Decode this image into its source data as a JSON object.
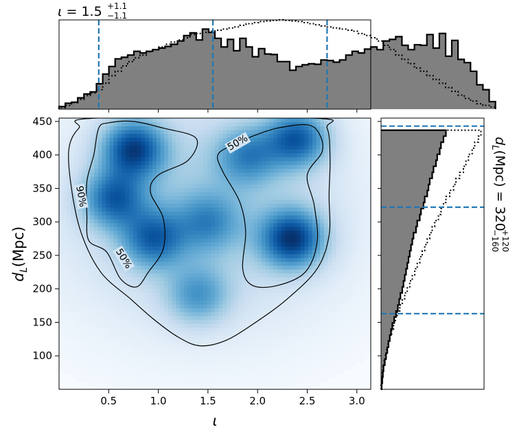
{
  "chart_data": [
    {
      "type": "heatmap",
      "panel": "joint",
      "xlabel": "ι",
      "ylabel_main": "d",
      "ylabel_sub": "L",
      "ylabel_unit": "(Mpc)",
      "xlim": [
        0.0,
        3.14
      ],
      "ylim": [
        50,
        455
      ],
      "x_ticks": [
        0.5,
        1.0,
        1.5,
        2.0,
        2.5,
        3.0
      ],
      "x_tick_labels": [
        "0.5",
        "1.0",
        "1.5",
        "2.0",
        "2.5",
        "3.0"
      ],
      "y_ticks": [
        100,
        150,
        200,
        250,
        300,
        350,
        400,
        450
      ],
      "y_tick_labels": [
        "100",
        "150",
        "200",
        "250",
        "300",
        "350",
        "400",
        "450"
      ],
      "colormap": "Blues",
      "density_peaks": [
        {
          "x": 0.75,
          "y": 410,
          "strength": 0.95
        },
        {
          "x": 0.55,
          "y": 335,
          "strength": 0.75
        },
        {
          "x": 0.95,
          "y": 275,
          "strength": 0.7
        },
        {
          "x": 2.4,
          "y": 425,
          "strength": 0.85
        },
        {
          "x": 2.35,
          "y": 275,
          "strength": 1.0
        },
        {
          "x": 1.9,
          "y": 400,
          "strength": 0.55
        },
        {
          "x": 1.5,
          "y": 300,
          "strength": 0.45
        },
        {
          "x": 1.4,
          "y": 190,
          "strength": 0.5
        }
      ],
      "contours": [
        {
          "label": "90%",
          "label_pos": {
            "x": 0.22,
            "y": 338
          },
          "points": [
            [
              0.38,
              455
            ],
            [
              2.55,
              455
            ],
            [
              2.7,
              440
            ],
            [
              2.73,
              395
            ],
            [
              2.72,
              340
            ],
            [
              2.72,
              280
            ],
            [
              2.6,
              230
            ],
            [
              2.3,
              185
            ],
            [
              1.98,
              150
            ],
            [
              1.68,
              123
            ],
            [
              1.42,
              115
            ],
            [
              1.2,
              128
            ],
            [
              0.95,
              155
            ],
            [
              0.72,
              185
            ],
            [
              0.42,
              225
            ],
            [
              0.22,
              285
            ],
            [
              0.12,
              355
            ],
            [
              0.1,
              410
            ],
            [
              0.2,
              440
            ],
            [
              0.38,
              455
            ]
          ]
        },
        {
          "label": "50%",
          "label_pos": {
            "x": 0.65,
            "y": 245
          },
          "points": [
            [
              0.4,
              440
            ],
            [
              0.5,
              448
            ],
            [
              0.75,
              450
            ],
            [
              1.05,
              440
            ],
            [
              1.38,
              425
            ],
            [
              1.3,
              392
            ],
            [
              1.0,
              370
            ],
            [
              0.92,
              345
            ],
            [
              1.05,
              305
            ],
            [
              1.05,
              260
            ],
            [
              0.9,
              225
            ],
            [
              0.78,
              203
            ],
            [
              0.62,
              215
            ],
            [
              0.48,
              255
            ],
            [
              0.3,
              272
            ],
            [
              0.28,
              310
            ],
            [
              0.28,
              360
            ],
            [
              0.35,
              400
            ],
            [
              0.4,
              440
            ]
          ]
        },
        {
          "label": "50%",
          "label_pos": {
            "x": 1.8,
            "y": 418
          },
          "points": [
            [
              1.6,
              400
            ],
            [
              1.75,
              415
            ],
            [
              1.95,
              428
            ],
            [
              2.2,
              440
            ],
            [
              2.5,
              445
            ],
            [
              2.62,
              432
            ],
            [
              2.65,
              405
            ],
            [
              2.5,
              370
            ],
            [
              2.57,
              325
            ],
            [
              2.6,
              270
            ],
            [
              2.48,
              225
            ],
            [
              2.2,
              205
            ],
            [
              1.95,
              205
            ],
            [
              1.85,
              230
            ],
            [
              1.88,
              285
            ],
            [
              1.82,
              330
            ],
            [
              1.65,
              375
            ],
            [
              1.6,
              400
            ]
          ]
        }
      ]
    },
    {
      "type": "bar",
      "panel": "top-marginal",
      "title_symbol": "ι",
      "title_value": "1.5",
      "title_plus": "+1.1",
      "title_minus": "−1.1",
      "bin_start": 0.0,
      "bin_width": 0.0628,
      "values": [
        5,
        11,
        13,
        21,
        28,
        32,
        47,
        65,
        79,
        93,
        96,
        100,
        107,
        104,
        107,
        110,
        113,
        116,
        120,
        126,
        136,
        141,
        128,
        148,
        142,
        131,
        115,
        129,
        108,
        131,
        115,
        97,
        112,
        102,
        101,
        88,
        88,
        72,
        79,
        82,
        84,
        83,
        91,
        90,
        87,
        91,
        100,
        107,
        104,
        111,
        115,
        110,
        126,
        129,
        134,
        118,
        110,
        119,
        118,
        138,
        113,
        140,
        98,
        127,
        92,
        86,
        70,
        45,
        36,
        14
      ],
      "reference_values": [
        3,
        7,
        12,
        18,
        25,
        30,
        36,
        48,
        62,
        70,
        80,
        88,
        95,
        100,
        106,
        110,
        115,
        120,
        124,
        128,
        132,
        138,
        140,
        142,
        144,
        146,
        148,
        150,
        152,
        155,
        158,
        160,
        162,
        163,
        164,
        165,
        164,
        163,
        162,
        160,
        158,
        156,
        154,
        152,
        150,
        148,
        146,
        144,
        140,
        136,
        132,
        126,
        118,
        110,
        100,
        92,
        84,
        76,
        70,
        62,
        55,
        48,
        40,
        33,
        26,
        20,
        15,
        10,
        7,
        4
      ],
      "quantiles": [
        0.4,
        1.55,
        2.7
      ],
      "ylim": [
        0,
        165
      ]
    },
    {
      "type": "bar",
      "panel": "right-marginal",
      "title_symbol": "d",
      "title_sub": "L",
      "title_unit": "(Mpc)",
      "title_value": "320",
      "title_plus": "+120",
      "title_minus": "−160",
      "bin_start": 50,
      "bin_width": 9,
      "values": [
        1,
        2,
        3,
        4,
        6,
        8,
        10,
        12,
        14,
        16,
        18,
        21,
        24,
        27,
        29,
        31,
        34,
        36,
        38,
        40,
        42,
        44,
        46,
        48,
        50,
        52,
        56,
        58,
        62,
        64,
        68,
        70,
        74,
        76,
        78,
        82,
        84,
        88,
        90,
        94,
        96,
        100,
        104
      ],
      "reference_values": [
        0,
        1,
        2,
        3,
        5,
        7,
        9,
        11,
        14,
        17,
        20,
        23,
        26,
        30,
        34,
        38,
        42,
        46,
        50,
        54,
        58,
        62,
        66,
        70,
        74,
        78,
        82,
        86,
        92,
        96,
        100,
        104,
        110,
        116,
        120,
        126,
        132,
        136,
        140,
        146,
        150,
        156,
        160
      ],
      "quantiles": [
        163,
        322,
        443
      ],
      "xlim": [
        0,
        165
      ]
    }
  ]
}
